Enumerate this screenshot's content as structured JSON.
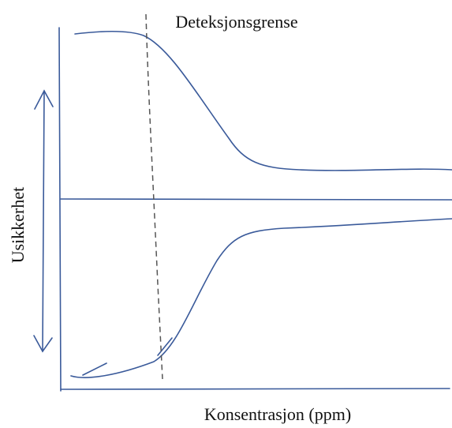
{
  "annotation": "Deteksjonsgrense",
  "y_label": "Usikkerhet",
  "x_label": "Konsentrasjon (ppm)"
}
